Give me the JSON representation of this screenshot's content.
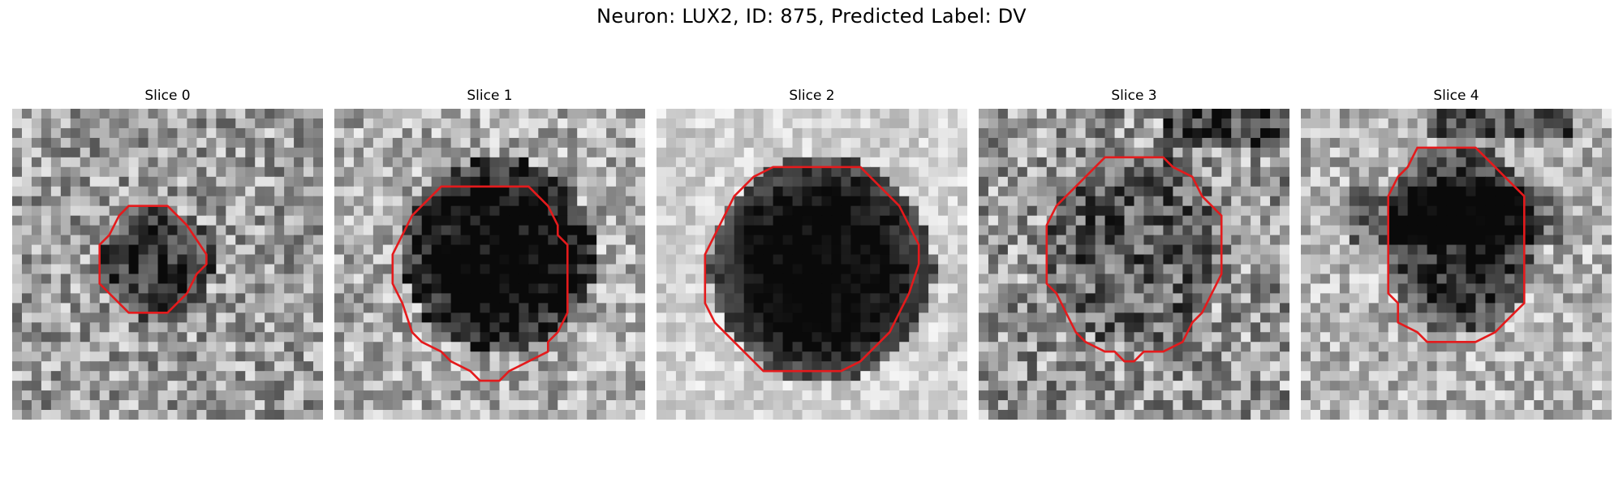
{
  "figure": {
    "title": "Neuron: LUX2, ID: 875, Predicted Label: DV"
  },
  "panels": [
    {
      "title": "Slice 0"
    },
    {
      "title": "Slice 1"
    },
    {
      "title": "Slice 2"
    },
    {
      "title": "Slice 3"
    },
    {
      "title": "Slice 4"
    }
  ],
  "colors": {
    "contour": "#e41a1c",
    "background": "#ffffff"
  }
}
